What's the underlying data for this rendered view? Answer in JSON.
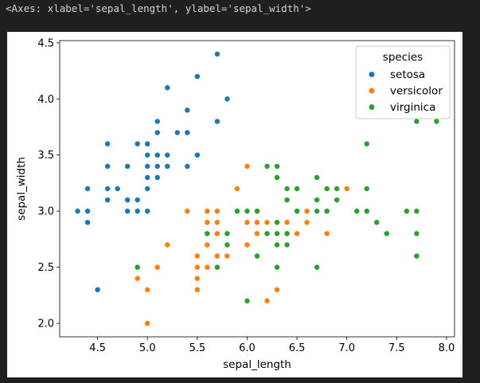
{
  "cell_output": {
    "repr_text": "<Axes: xlabel='sepal_length', ylabel='sepal_width'>"
  },
  "chart_data": {
    "type": "scatter",
    "title": "",
    "xlabel": "sepal_length",
    "ylabel": "sepal_width",
    "xlim": [
      4.12,
      8.08
    ],
    "ylim": [
      1.88,
      4.52
    ],
    "xticks": [
      4.5,
      5.0,
      5.5,
      6.0,
      6.5,
      7.0,
      7.5,
      8.0
    ],
    "yticks": [
      2.0,
      2.5,
      3.0,
      3.5,
      4.0,
      4.5
    ],
    "xtick_labels": [
      "4.5",
      "5.0",
      "5.5",
      "6.0",
      "6.5",
      "7.0",
      "7.5",
      "8.0"
    ],
    "ytick_labels": [
      "2.0",
      "2.5",
      "3.0",
      "3.5",
      "4.0",
      "4.5"
    ],
    "grid": false,
    "legend": {
      "title": "species",
      "position": "upper-right",
      "entries": [
        "setosa",
        "versicolor",
        "virginica"
      ]
    },
    "series": [
      {
        "name": "setosa",
        "color": "#1f77b4",
        "x": [
          5.1,
          4.9,
          4.7,
          4.6,
          5.0,
          5.4,
          4.6,
          5.0,
          4.4,
          4.9,
          5.4,
          4.8,
          4.8,
          4.3,
          5.8,
          5.7,
          5.4,
          5.1,
          5.7,
          5.1,
          5.4,
          5.1,
          4.6,
          5.1,
          4.8,
          5.0,
          5.0,
          5.2,
          5.2,
          4.7,
          4.8,
          5.4,
          5.2,
          5.5,
          4.9,
          5.0,
          5.5,
          4.9,
          4.4,
          5.1,
          5.0,
          4.5,
          4.4,
          5.0,
          5.1,
          4.8,
          5.1,
          4.6,
          5.3,
          5.0
        ],
        "y": [
          3.5,
          3.0,
          3.2,
          3.1,
          3.6,
          3.9,
          3.4,
          3.4,
          2.9,
          3.1,
          3.7,
          3.4,
          3.0,
          3.0,
          4.0,
          4.4,
          3.9,
          3.5,
          3.8,
          3.8,
          3.4,
          3.7,
          3.6,
          3.3,
          3.4,
          3.0,
          3.4,
          3.5,
          3.4,
          3.2,
          3.1,
          3.4,
          4.1,
          4.2,
          3.1,
          3.2,
          3.5,
          3.6,
          3.0,
          3.4,
          3.5,
          2.3,
          3.2,
          3.5,
          3.8,
          3.0,
          3.8,
          3.2,
          3.7,
          3.3
        ]
      },
      {
        "name": "versicolor",
        "color": "#ff7f0e",
        "x": [
          7.0,
          6.4,
          6.9,
          5.5,
          6.5,
          5.7,
          6.3,
          4.9,
          6.6,
          5.2,
          5.0,
          5.9,
          6.0,
          6.1,
          5.6,
          6.7,
          5.6,
          5.8,
          6.2,
          5.6,
          5.9,
          6.1,
          6.3,
          6.1,
          6.4,
          6.6,
          6.8,
          6.7,
          6.0,
          5.7,
          5.5,
          5.5,
          5.8,
          6.0,
          5.4,
          6.0,
          6.7,
          6.3,
          5.6,
          5.5,
          5.5,
          6.1,
          5.8,
          5.0,
          5.6,
          5.7,
          5.7,
          6.2,
          5.1,
          5.7
        ],
        "y": [
          3.2,
          3.2,
          3.1,
          2.3,
          2.8,
          2.8,
          3.3,
          2.4,
          2.9,
          2.7,
          2.0,
          3.0,
          2.2,
          2.9,
          2.9,
          3.1,
          3.0,
          2.7,
          2.2,
          2.5,
          3.2,
          2.8,
          2.5,
          2.8,
          2.9,
          3.0,
          2.8,
          3.0,
          2.9,
          2.6,
          2.4,
          2.4,
          2.7,
          2.7,
          3.0,
          3.4,
          3.1,
          2.3,
          3.0,
          2.5,
          2.6,
          3.0,
          2.6,
          2.3,
          2.7,
          3.0,
          2.9,
          2.9,
          2.5,
          2.8
        ]
      },
      {
        "name": "virginica",
        "color": "#2ca02c",
        "x": [
          6.3,
          5.8,
          7.1,
          6.3,
          6.5,
          7.6,
          4.9,
          7.3,
          6.7,
          7.2,
          6.5,
          6.4,
          6.8,
          5.7,
          5.8,
          6.4,
          6.5,
          7.7,
          7.7,
          6.0,
          6.9,
          5.6,
          7.7,
          6.3,
          6.7,
          7.2,
          6.2,
          6.1,
          6.4,
          7.2,
          7.4,
          7.9,
          6.4,
          6.3,
          6.1,
          7.7,
          6.3,
          6.4,
          6.0,
          6.9,
          6.7,
          6.9,
          5.8,
          6.8,
          6.7,
          6.7,
          6.3,
          6.5,
          6.2,
          5.9
        ],
        "y": [
          3.3,
          2.7,
          3.0,
          2.9,
          3.0,
          3.0,
          2.5,
          2.9,
          2.5,
          3.6,
          3.2,
          2.7,
          3.0,
          2.5,
          2.8,
          3.2,
          3.0,
          3.8,
          2.6,
          2.2,
          3.2,
          2.8,
          2.8,
          2.7,
          3.3,
          3.2,
          2.8,
          3.0,
          2.8,
          3.0,
          2.8,
          3.8,
          2.8,
          2.8,
          2.6,
          3.0,
          3.4,
          3.1,
          3.0,
          3.1,
          3.1,
          3.1,
          2.7,
          3.2,
          3.3,
          3.0,
          2.5,
          3.0,
          3.4,
          3.0
        ]
      }
    ]
  }
}
